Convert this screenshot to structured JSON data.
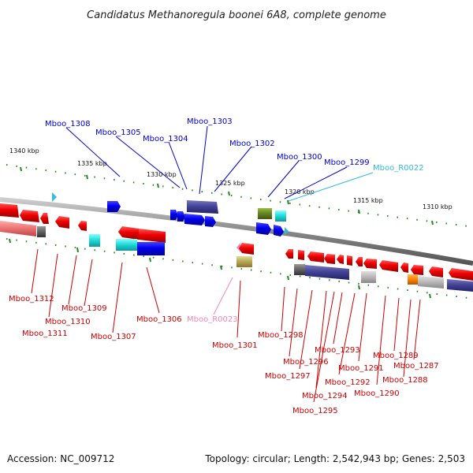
{
  "title": "Candidatus Methanoregula boonei 6A8, complete genome",
  "footer": {
    "accession": "Accession: NC_009712",
    "topology": "Topology: circular; Length: 2,542,943 bp; Genes: 2,503"
  },
  "kbp_ticks": [
    "1340 kbp",
    "1335 kbp",
    "1330 kbp",
    "1325 kbp",
    "1320 kbp",
    "1315 kbp",
    "1310 kbp"
  ],
  "top_labels": [
    {
      "text": "Mboo_1308",
      "color": "#0000cc"
    },
    {
      "text": "Mboo_1305",
      "color": "#0000cc"
    },
    {
      "text": "Mboo_1304",
      "color": "#0000cc"
    },
    {
      "text": "Mboo_1303",
      "color": "#0000cc"
    },
    {
      "text": "Mboo_1302",
      "color": "#0000cc"
    },
    {
      "text": "Mboo_1300",
      "color": "#0000cc"
    },
    {
      "text": "Mboo_1299",
      "color": "#0000cc"
    },
    {
      "text": "Mboo_R0022",
      "color": "#33bbdd"
    }
  ],
  "bottom_labels": [
    {
      "text": "Mboo_1312",
      "color": "#cc0000"
    },
    {
      "text": "Mboo_1309",
      "color": "#cc0000"
    },
    {
      "text": "Mboo_1310",
      "color": "#cc0000"
    },
    {
      "text": "Mboo_1311",
      "color": "#cc0000"
    },
    {
      "text": "Mboo_1307",
      "color": "#cc0000"
    },
    {
      "text": "Mboo_1306",
      "color": "#cc0000"
    },
    {
      "text": "Mboo_R0023",
      "color": "#ee88bb"
    },
    {
      "text": "Mboo_1301",
      "color": "#cc0000"
    },
    {
      "text": "Mboo_1298",
      "color": "#cc0000"
    },
    {
      "text": "Mboo_1296",
      "color": "#cc0000"
    },
    {
      "text": "Mboo_1297",
      "color": "#cc0000"
    },
    {
      "text": "Mboo_1293",
      "color": "#cc0000"
    },
    {
      "text": "Mboo_1294",
      "color": "#cc0000"
    },
    {
      "text": "Mboo_1295",
      "color": "#cc0000"
    },
    {
      "text": "Mboo_1292",
      "color": "#cc0000"
    },
    {
      "text": "Mboo_1291",
      "color": "#cc0000"
    },
    {
      "text": "Mboo_1290",
      "color": "#cc0000"
    },
    {
      "text": "Mboo_1289",
      "color": "#cc0000"
    },
    {
      "text": "Mboo_1288",
      "color": "#cc0000"
    },
    {
      "text": "Mboo_1287",
      "color": "#cc0000"
    }
  ],
  "colors": {
    "forward_gene": "#0000ee",
    "reverse_gene": "#ee0000",
    "backbone": "#888888",
    "tick": "#228822",
    "rna_forward": "#33bbdd",
    "rna_reverse": "#ee88bb"
  }
}
